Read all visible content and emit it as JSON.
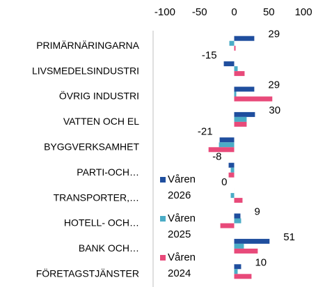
{
  "chart_data": {
    "type": "hbar",
    "categories": [
      "PRIMÄRNÄRINGARNA",
      "LIVSMEDELSINDUSTRI",
      "ÖVRIG INDUSTRI",
      "VATTEN OCH EL",
      "BYGGVERKSAMHET",
      "PARTI-OCH…",
      "TRANSPORTER,…",
      "HOTELL- OCH…",
      "BANK OCH…",
      "FÖRETAGSTJÄNSTER"
    ],
    "series": [
      {
        "name": "Våren 2026",
        "color": "#1f4e9e",
        "values": [
          29,
          -15,
          29,
          30,
          -21,
          -8,
          0,
          9,
          51,
          10
        ]
      },
      {
        "name": "Våren 2025",
        "color": "#4bacc6",
        "values": [
          -7,
          5,
          3,
          18,
          -22,
          -5,
          -5,
          10,
          14,
          5
        ]
      },
      {
        "name": "Våren 2024",
        "color": "#e84a7a",
        "values": [
          2,
          15,
          55,
          18,
          -37,
          -8,
          12,
          -20,
          34,
          25
        ]
      }
    ],
    "xlim": [
      -117,
      120
    ],
    "xticks": [
      -100,
      -50,
      0,
      50,
      100
    ]
  }
}
